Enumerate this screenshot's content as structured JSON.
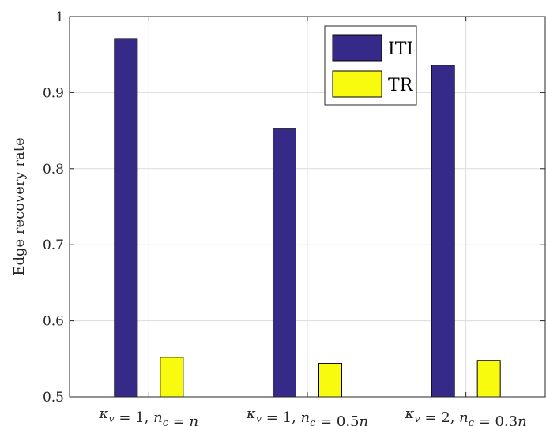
{
  "chart_data": {
    "type": "bar",
    "categories": [
      "κv = 1, nc = n",
      "κv = 1, nc = 0.5n",
      "κv = 2, nc = 0.3n"
    ],
    "category_parts": [
      {
        "k": "κ",
        "ksub": "v",
        "kval": " = 1, ",
        "n": "n",
        "nsub": "c",
        "nval": " = n"
      },
      {
        "k": "κ",
        "ksub": "v",
        "kval": " = 1, ",
        "n": "n",
        "nsub": "c",
        "nval": " = 0.5n"
      },
      {
        "k": "κ",
        "ksub": "v",
        "kval": " = 2, ",
        "n": "n",
        "nsub": "c",
        "nval": " = 0.3n"
      }
    ],
    "series": [
      {
        "name": "ITI",
        "color": "#352a87",
        "values": [
          0.971,
          0.853,
          0.936
        ]
      },
      {
        "name": "TR",
        "color": "#f9fb0e",
        "values": [
          0.552,
          0.544,
          0.548
        ]
      }
    ],
    "ylabel": "Edge recovery rate",
    "ylim": [
      0.5,
      1.0
    ],
    "yticks": [
      0.5,
      0.6,
      0.7,
      0.8,
      0.9,
      1.0
    ],
    "ytick_labels": [
      "0.5",
      "0.6",
      "0.7",
      "0.8",
      "0.9",
      "1"
    ],
    "grid": true,
    "legend_position": "top-right"
  }
}
